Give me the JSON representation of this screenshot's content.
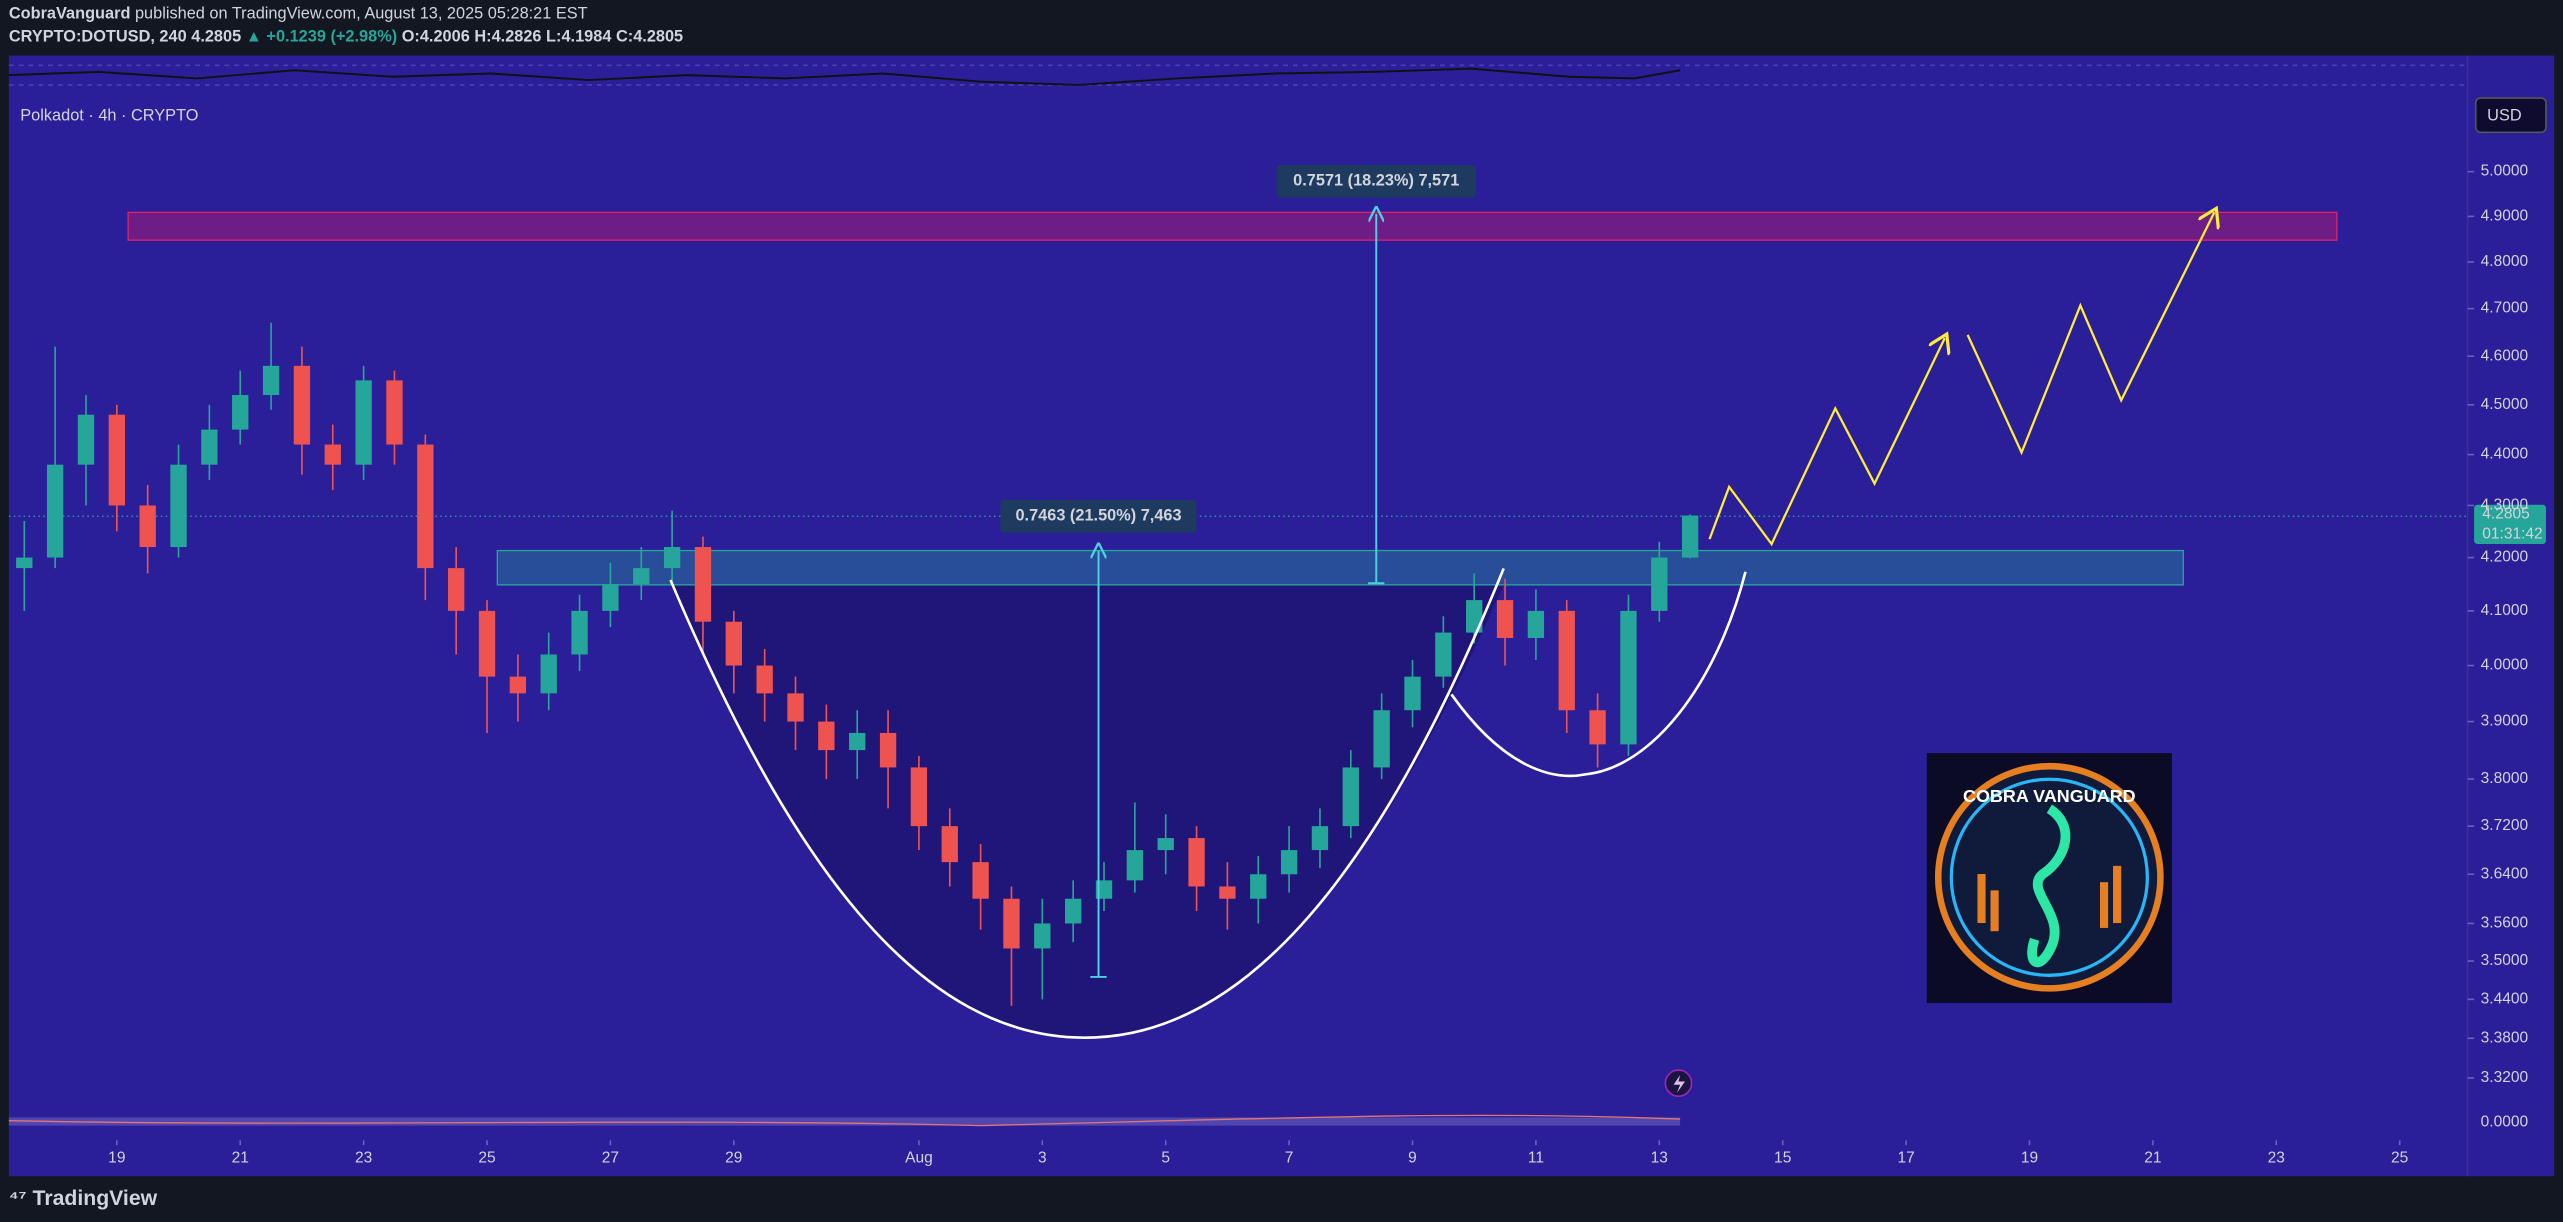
{
  "header": {
    "author": "CobraVanguard",
    "published": "published on TradingView.com, August 13, 2025 05:28:21 EST",
    "symbol": "CRYPTO:DOTUSD, 240",
    "last": "4.2805",
    "change": "▲ +0.1239 (+2.98%)",
    "open": "O:4.2006",
    "high": "H:4.2826",
    "low": "L:4.1984",
    "close": "C:4.2805"
  },
  "legend_title": "Polkadot · 4h · CRYPTO",
  "currency_button": "USD",
  "price_label": "4.2805",
  "countdown": "01:31:42",
  "measure_labels": [
    "0.7463 (21.50%) 7,463",
    "0.7571 (18.23%) 7,571"
  ],
  "logo_text": "COBRA VANGUARD",
  "footer_brand": "TradingView",
  "indicator_ticks": [
    {
      "value": 0,
      "label": "0.0000"
    }
  ],
  "chart_data": {
    "type": "candlestick",
    "log_scale": true,
    "grid": false,
    "up_color": "#26a69a",
    "down_color": "#ef5350",
    "x": [
      17.5,
      18,
      18.5,
      19,
      19.5,
      20,
      20.5,
      21,
      21.5,
      22,
      22.5,
      23,
      23.5,
      24,
      24.5,
      25,
      25.5,
      26,
      26.5,
      27,
      27.5,
      28,
      28.5,
      29,
      29.5,
      30,
      30.5,
      31,
      31.5,
      32,
      32.5,
      33,
      33.5,
      34,
      34.5,
      35,
      35.5,
      36,
      36.5,
      37,
      37.5,
      38,
      38.5,
      39,
      39.5,
      40,
      40.5,
      41,
      41.5,
      42,
      42.5,
      43,
      43.5,
      44,
      44.5
    ],
    "series": [
      {
        "open": [
          4.18,
          4.2,
          4.38,
          4.48,
          4.3,
          4.22,
          4.38,
          4.45,
          4.52,
          4.58,
          4.42,
          4.38,
          4.55,
          4.42,
          4.18,
          4.1,
          3.98,
          3.95,
          4.02,
          4.1,
          4.15,
          4.18,
          4.22,
          4.08,
          4.0,
          3.95,
          3.9,
          3.85,
          3.88,
          3.82,
          3.72,
          3.66,
          3.6,
          3.52,
          3.56,
          3.6,
          3.63,
          3.68,
          3.7,
          3.62,
          3.6,
          3.64,
          3.68,
          3.72,
          3.82,
          3.92,
          3.98,
          4.06,
          4.12,
          4.05,
          4.1,
          3.92,
          3.86,
          4.1,
          4.2
        ],
        "high": [
          4.27,
          4.62,
          4.52,
          4.5,
          4.34,
          4.42,
          4.5,
          4.57,
          4.67,
          4.62,
          4.46,
          4.58,
          4.57,
          4.44,
          4.22,
          4.12,
          4.02,
          4.06,
          4.13,
          4.19,
          4.22,
          4.29,
          4.24,
          4.1,
          4.03,
          3.98,
          3.93,
          3.92,
          3.92,
          3.84,
          3.75,
          3.69,
          3.62,
          3.6,
          3.63,
          3.66,
          3.76,
          3.74,
          3.72,
          3.66,
          3.67,
          3.72,
          3.75,
          3.85,
          3.95,
          4.01,
          4.09,
          4.17,
          4.16,
          4.14,
          4.12,
          3.95,
          4.13,
          4.23,
          4.2826
        ],
        "low": [
          4.1,
          4.18,
          4.3,
          4.25,
          4.17,
          4.2,
          4.35,
          4.42,
          4.49,
          4.36,
          4.33,
          4.35,
          4.38,
          4.12,
          4.02,
          3.88,
          3.9,
          3.92,
          3.99,
          4.07,
          4.12,
          4.15,
          4.02,
          3.95,
          3.9,
          3.85,
          3.8,
          3.8,
          3.75,
          3.68,
          3.62,
          3.55,
          3.43,
          3.44,
          3.53,
          3.58,
          3.61,
          3.64,
          3.58,
          3.55,
          3.56,
          3.61,
          3.65,
          3.7,
          3.8,
          3.89,
          3.96,
          4.04,
          4.0,
          4.01,
          3.88,
          3.82,
          3.84,
          4.08,
          4.1984
        ],
        "close": [
          4.2,
          4.38,
          4.48,
          4.3,
          4.22,
          4.38,
          4.45,
          4.52,
          4.58,
          4.42,
          4.38,
          4.55,
          4.42,
          4.18,
          4.1,
          3.98,
          3.95,
          4.02,
          4.1,
          4.15,
          4.18,
          4.22,
          4.08,
          4.0,
          3.95,
          3.9,
          3.85,
          3.88,
          3.82,
          3.72,
          3.66,
          3.6,
          3.52,
          3.56,
          3.6,
          3.63,
          3.68,
          3.7,
          3.62,
          3.6,
          3.64,
          3.68,
          3.72,
          3.82,
          3.92,
          3.98,
          4.06,
          4.12,
          4.05,
          4.1,
          3.92,
          3.86,
          4.1,
          4.2,
          4.2805
        ]
      }
    ],
    "xlim": [
      17.25,
      57.1
    ],
    "xticks": [
      19,
      21,
      23,
      25,
      27,
      29,
      {
        "value": 32,
        "label": "Aug"
      },
      {
        "value": 34,
        "label": "3"
      },
      {
        "value": 36,
        "label": "5"
      },
      {
        "value": 38,
        "label": "7"
      },
      {
        "value": 40,
        "label": "9"
      },
      {
        "value": 42,
        "label": "11"
      },
      {
        "value": 44,
        "label": "13"
      },
      {
        "value": 46,
        "label": "15"
      },
      {
        "value": 48,
        "label": "17"
      },
      {
        "value": 50,
        "label": "19"
      },
      {
        "value": 52,
        "label": "21"
      },
      {
        "value": 54,
        "label": "23"
      },
      {
        "value": 56,
        "label": "25"
      }
    ],
    "ylim": [
      3.283,
      5.246
    ],
    "yticks": [
      {
        "value": 5.0,
        "label": "5.0000"
      },
      {
        "value": 4.9,
        "label": "4.9000"
      },
      {
        "value": 4.8,
        "label": "4.8000"
      },
      {
        "value": 4.7,
        "label": "4.7000"
      },
      {
        "value": 4.6,
        "label": "4.6000"
      },
      {
        "value": 4.5,
        "label": "4.5000"
      },
      {
        "value": 4.4,
        "label": "4.4000"
      },
      {
        "value": 4.3,
        "label": "4.3000"
      },
      {
        "value": 4.2,
        "label": "4.2000"
      },
      {
        "value": 4.1,
        "label": "4.1000"
      },
      {
        "value": 4.0,
        "label": "4.0000"
      },
      {
        "value": 3.9,
        "label": "3.9000"
      },
      {
        "value": 3.8,
        "label": "3.8000"
      },
      {
        "value": 3.72,
        "label": "3.7200"
      },
      {
        "value": 3.64,
        "label": "3.6400"
      },
      {
        "value": 3.56,
        "label": "3.5600"
      },
      {
        "value": 3.5,
        "label": "3.5000"
      },
      {
        "value": 3.44,
        "label": "3.4400"
      },
      {
        "value": 3.38,
        "label": "3.3800"
      },
      {
        "value": 3.32,
        "label": "3.3200"
      }
    ]
  }
}
